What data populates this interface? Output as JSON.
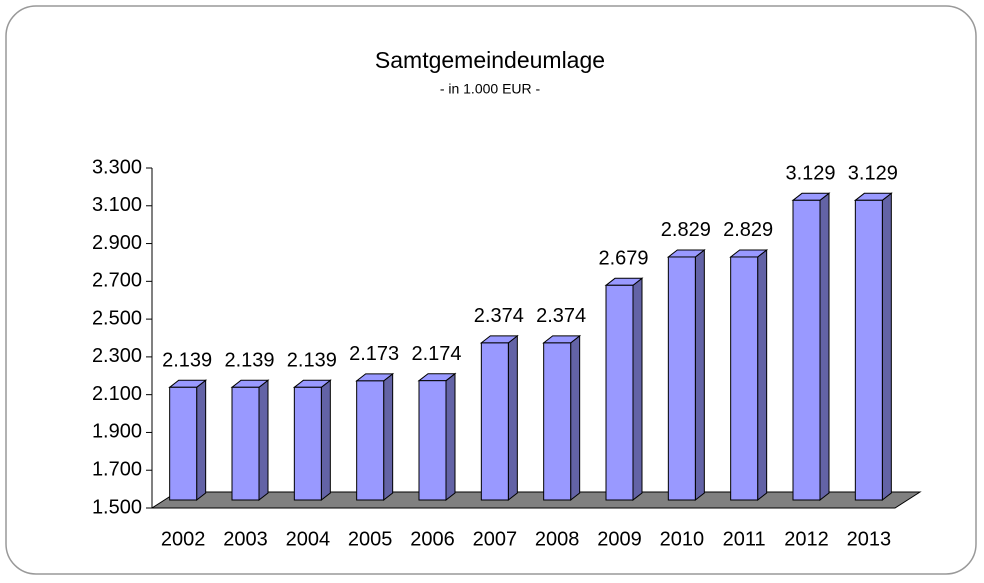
{
  "chart_data": {
    "type": "bar3d",
    "title": "Samtgemeindeumlage",
    "subtitle": "- in 1.000 EUR -",
    "categories": [
      "2002",
      "2003",
      "2004",
      "2005",
      "2006",
      "2007",
      "2008",
      "2009",
      "2010",
      "2011",
      "2012",
      "2013"
    ],
    "values": [
      2139,
      2139,
      2139,
      2173,
      2174,
      2374,
      2374,
      2679,
      2829,
      2829,
      3129,
      3129
    ],
    "value_labels": [
      "2.139",
      "2.139",
      "2.139",
      "2.173",
      "2.174",
      "2.374",
      "2.374",
      "2.679",
      "2.829",
      "2.829",
      "3.129",
      "3.129"
    ],
    "color": "#9999ff",
    "ylim": [
      1500,
      3300
    ],
    "yticks": [
      {
        "value": 1500,
        "label": "1.500"
      },
      {
        "value": 1700,
        "label": "1.700"
      },
      {
        "value": 1900,
        "label": "1.900"
      },
      {
        "value": 2100,
        "label": "2.100"
      },
      {
        "value": 2300,
        "label": "2.300"
      },
      {
        "value": 2500,
        "label": "2.500"
      },
      {
        "value": 2700,
        "label": "2.700"
      },
      {
        "value": 2900,
        "label": "2.900"
      },
      {
        "value": 3100,
        "label": "3.100"
      },
      {
        "value": 3300,
        "label": "3.300"
      }
    ]
  }
}
